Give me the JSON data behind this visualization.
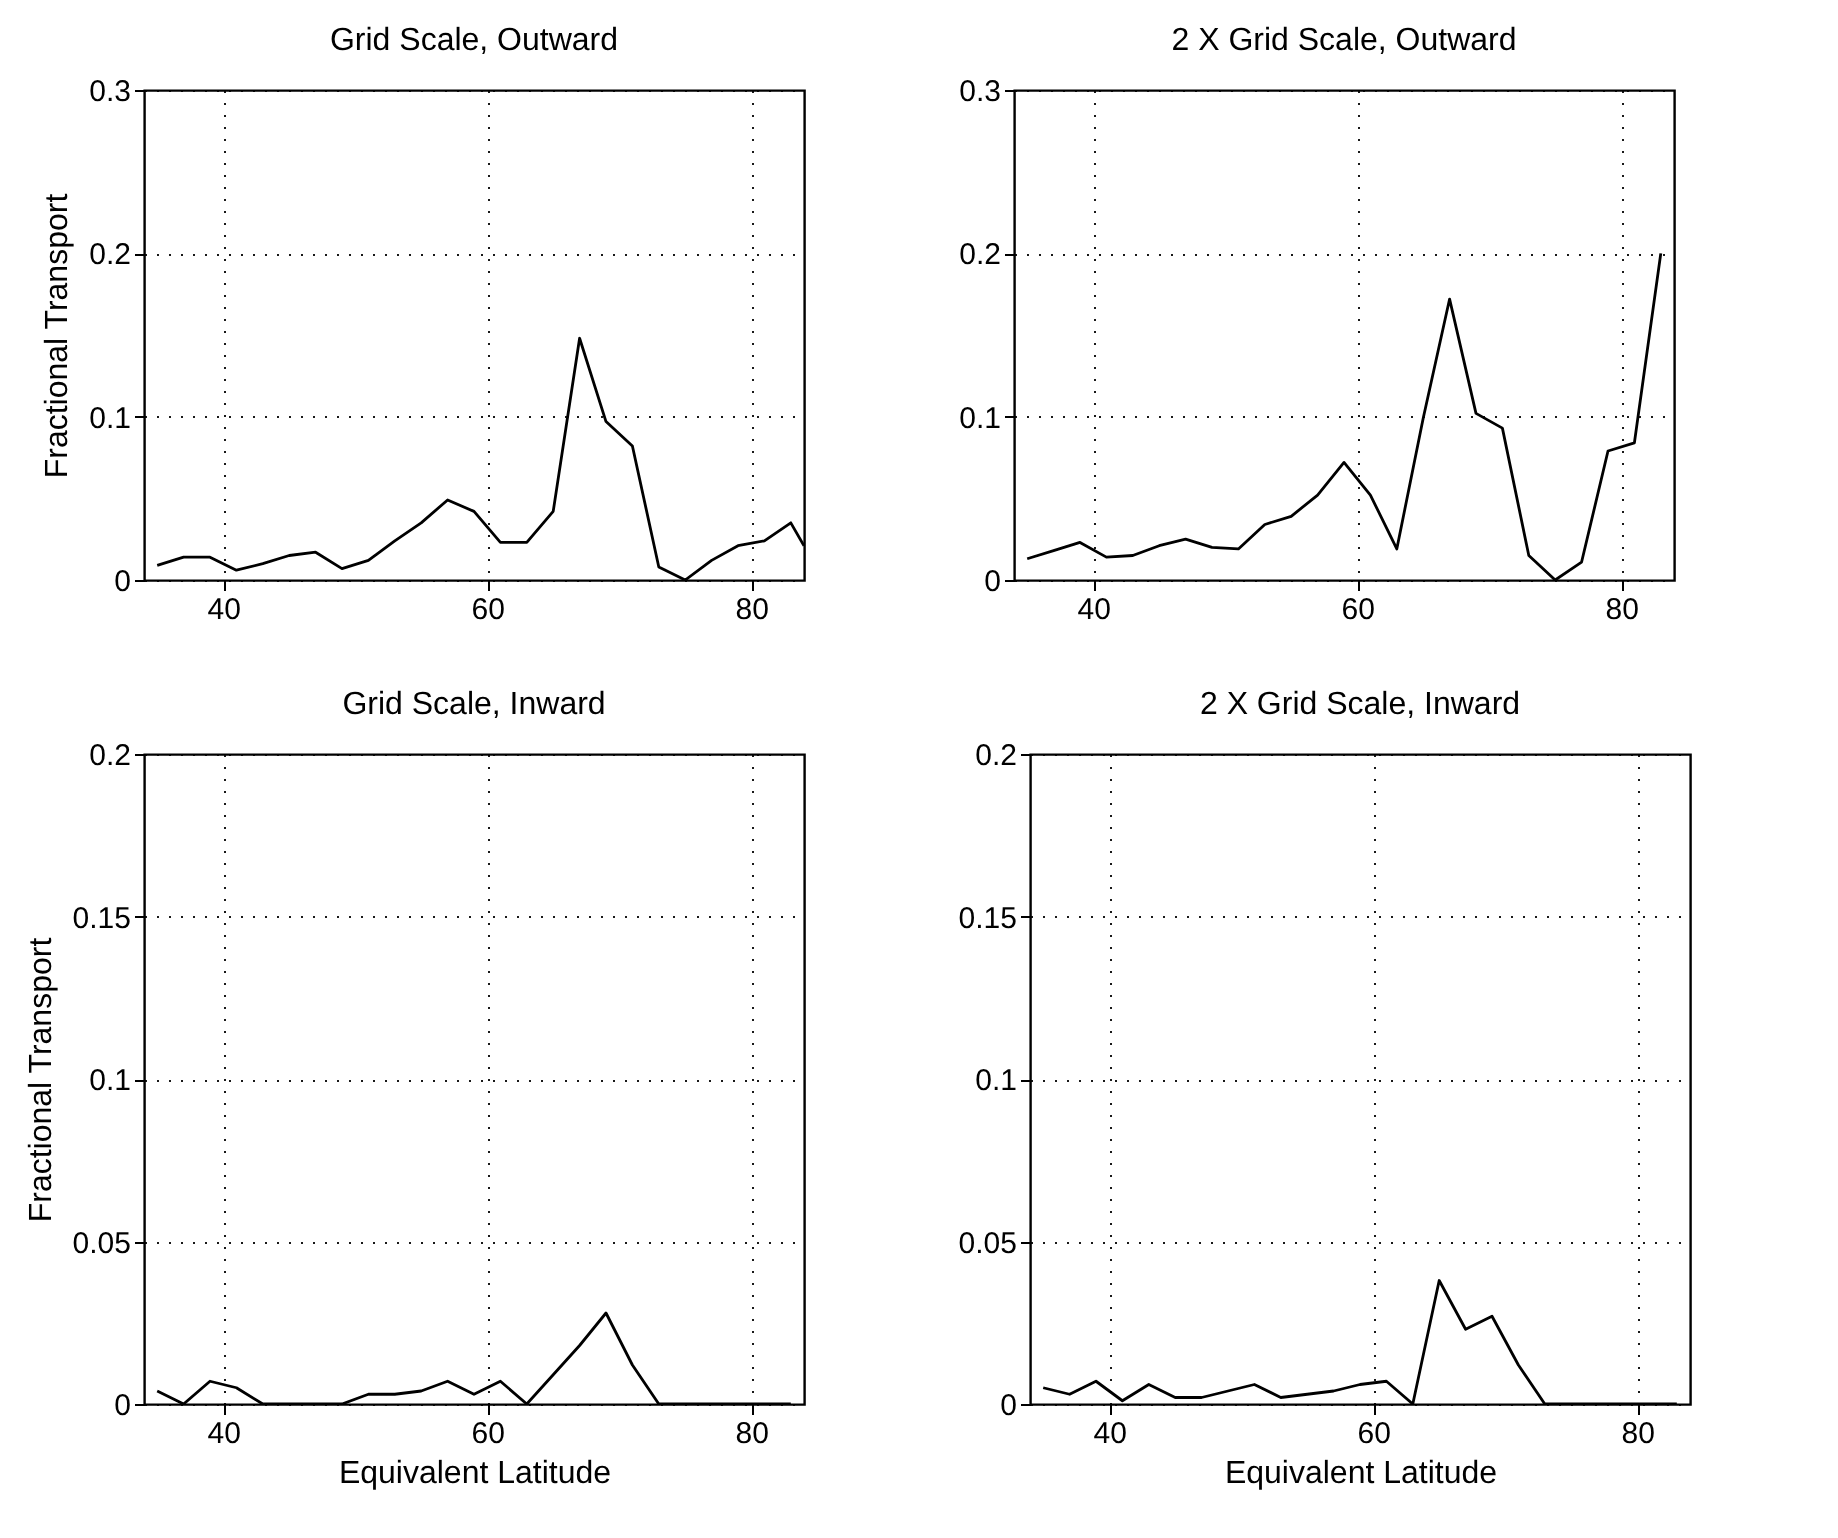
{
  "chart_data": [
    {
      "type": "line",
      "title": "Grid Scale, Outward",
      "ylabel": "Fractional Transport",
      "xlim": [
        34,
        84
      ],
      "xticks": [
        40,
        60,
        80
      ],
      "ylim": [
        0,
        0.3
      ],
      "yticks": [
        0,
        0.1,
        0.2,
        0.3
      ],
      "grid": true,
      "line_style": "solid",
      "x": [
        35,
        37,
        39,
        41,
        43,
        45,
        47,
        49,
        51,
        53,
        55,
        57,
        59,
        61,
        63,
        65,
        67,
        69,
        71,
        73,
        75,
        77,
        79,
        81,
        83,
        84
      ],
      "series": [
        {
          "color": "#000000",
          "values": [
            0.009,
            0.014,
            0.014,
            0.006,
            0.01,
            0.015,
            0.017,
            0.007,
            0.012,
            0.024,
            0.035,
            0.049,
            0.042,
            0.023,
            0.023,
            0.042,
            0.148,
            0.097,
            0.082,
            0.008,
            0.0,
            0.012,
            0.021,
            0.024,
            0.035,
            0.021
          ]
        }
      ]
    },
    {
      "type": "line",
      "title": "2 X Grid Scale, Outward",
      "xlim": [
        34,
        84
      ],
      "xticks": [
        40,
        60,
        80
      ],
      "ylim": [
        0,
        0.3
      ],
      "yticks": [
        0,
        0.1,
        0.2,
        0.3
      ],
      "grid": true,
      "line_style": "solid",
      "x": [
        35,
        37,
        39,
        41,
        43,
        45,
        47,
        49,
        51,
        53,
        55,
        57,
        59,
        61,
        63,
        65,
        67,
        69,
        71,
        73,
        75,
        77,
        79,
        81,
        83
      ],
      "series": [
        {
          "color": "#000000",
          "values": [
            0.013,
            0.018,
            0.023,
            0.014,
            0.015,
            0.021,
            0.025,
            0.02,
            0.019,
            0.034,
            0.039,
            0.052,
            0.072,
            0.052,
            0.019,
            0.099,
            0.172,
            0.102,
            0.093,
            0.015,
            0.0,
            0.011,
            0.079,
            0.084,
            0.2
          ]
        }
      ]
    },
    {
      "type": "line",
      "title": "Grid Scale, Inward",
      "xlabel": "Equivalent Latitude",
      "ylabel": "Fractional Transport",
      "xlim": [
        34,
        84
      ],
      "xticks": [
        40,
        60,
        80
      ],
      "ylim": [
        0,
        0.2
      ],
      "yticks": [
        0,
        0.05,
        0.1,
        0.15,
        0.2
      ],
      "grid": true,
      "line_style": "solid",
      "x": [
        35,
        37,
        39,
        41,
        43,
        45,
        47,
        49,
        51,
        53,
        55,
        57,
        59,
        61,
        63,
        65,
        67,
        69,
        71,
        73,
        75,
        77,
        79,
        81,
        83
      ],
      "series": [
        {
          "color": "#000000",
          "values": [
            0.004,
            0.0,
            0.007,
            0.005,
            0.0,
            0.0,
            0.0,
            0.0,
            0.003,
            0.003,
            0.004,
            0.007,
            0.003,
            0.007,
            0.0,
            0.009,
            0.018,
            0.028,
            0.012,
            0.0,
            0.0,
            0.0,
            0.0,
            0.0,
            0.0
          ]
        }
      ]
    },
    {
      "type": "line",
      "title": "2 X Grid Scale, Inward",
      "xlabel": "Equivalent Latitude",
      "xlim": [
        34,
        84
      ],
      "xticks": [
        40,
        60,
        80
      ],
      "ylim": [
        0,
        0.2
      ],
      "yticks": [
        0,
        0.05,
        0.1,
        0.15,
        0.2
      ],
      "grid": true,
      "line_style": "solid",
      "x": [
        35,
        37,
        39,
        41,
        43,
        45,
        47,
        49,
        51,
        53,
        55,
        57,
        59,
        61,
        63,
        65,
        67,
        69,
        71,
        73,
        75,
        77,
        79,
        81,
        83
      ],
      "series": [
        {
          "color": "#000000",
          "values": [
            0.005,
            0.003,
            0.007,
            0.001,
            0.006,
            0.002,
            0.002,
            0.004,
            0.006,
            0.002,
            0.003,
            0.004,
            0.006,
            0.007,
            0.0,
            0.038,
            0.023,
            0.027,
            0.012,
            0.0,
            0.0,
            0.0,
            0.0,
            0.0,
            0.0
          ]
        }
      ]
    }
  ]
}
